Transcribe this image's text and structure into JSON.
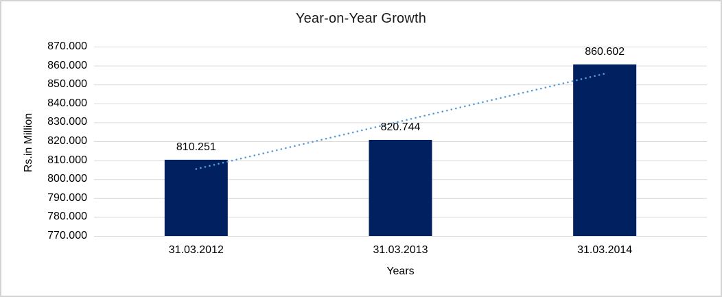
{
  "window": {
    "background": "#FFFFFF",
    "frame_border_color": "#D3D3D3"
  },
  "chart_data": {
    "type": "bar",
    "title": "Year-on-Year Growth",
    "categories": [
      "31.03.2012",
      "31.03.2013",
      "31.03.2014"
    ],
    "values": [
      810.251,
      820.744,
      860.602
    ],
    "data_labels": [
      "810.251",
      "820.744",
      "860.602"
    ],
    "xlabel": "Years",
    "ylabel": "Rs.in Million",
    "ylim": [
      770,
      870
    ],
    "ytick_step": 10,
    "ytick_labels": [
      "770.000",
      "780.000",
      "790.000",
      "800.000",
      "810.000",
      "820.000",
      "830.000",
      "840.000",
      "850.000",
      "860.000",
      "870.000"
    ],
    "grid": true,
    "gridline_color": "#D9D9D9",
    "bar_color": "#002060",
    "text_color": "#000000",
    "legend": "none",
    "trendline": {
      "type": "linear",
      "style": "dotted",
      "color": "#5B9BD5"
    }
  }
}
